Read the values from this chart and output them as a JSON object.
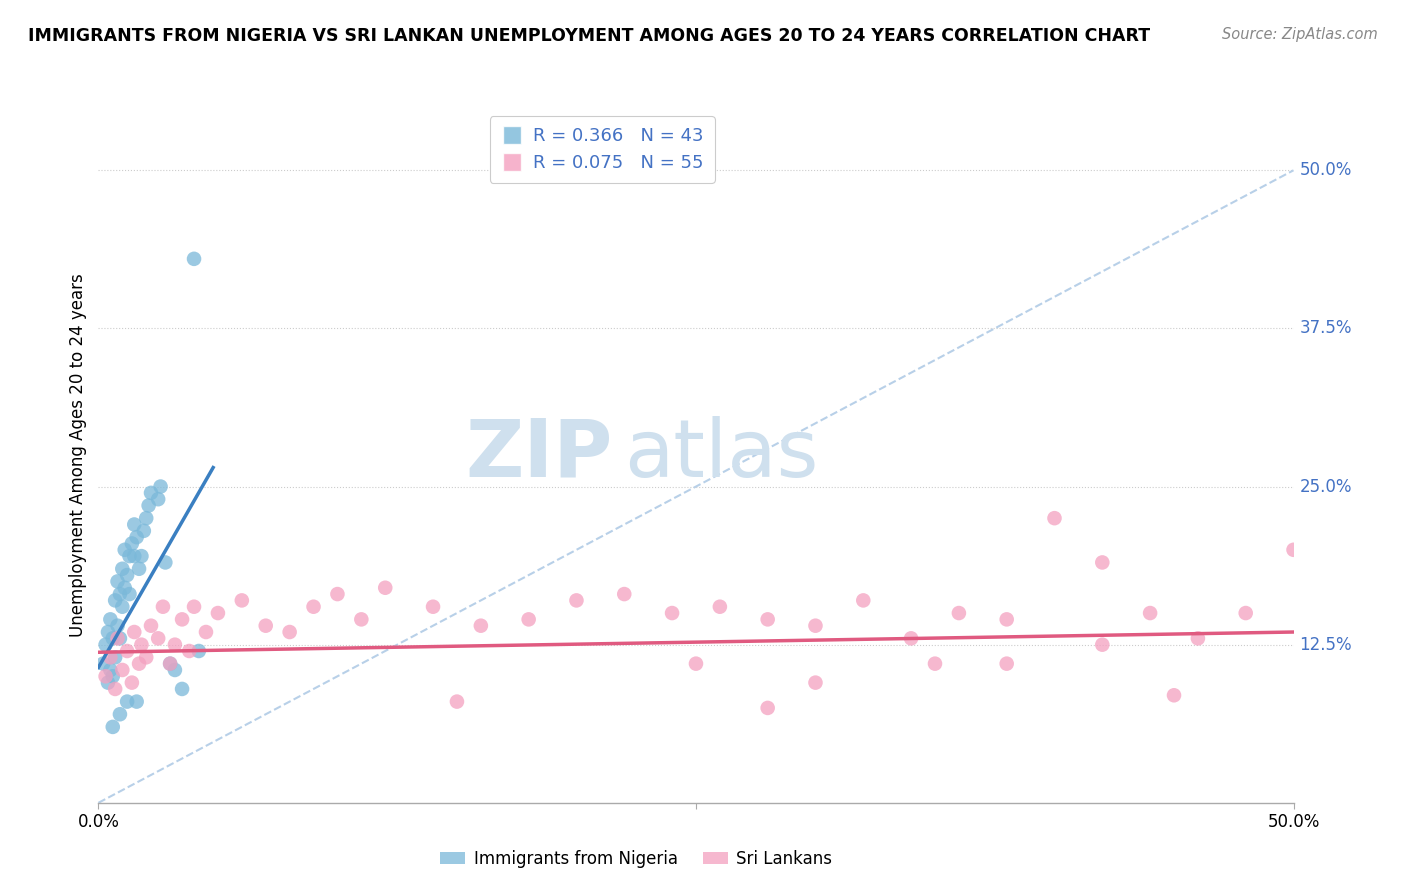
{
  "title": "IMMIGRANTS FROM NIGERIA VS SRI LANKAN UNEMPLOYMENT AMONG AGES 20 TO 24 YEARS CORRELATION CHART",
  "source": "Source: ZipAtlas.com",
  "ylabel": "Unemployment Among Ages 20 to 24 years",
  "xlim": [
    0.0,
    0.5
  ],
  "ylim": [
    0.0,
    0.55
  ],
  "y_tick_labels_right": [
    "50.0%",
    "37.5%",
    "25.0%",
    "12.5%"
  ],
  "y_tick_positions_right": [
    0.5,
    0.375,
    0.25,
    0.125
  ],
  "nigeria_R": 0.366,
  "nigeria_N": 43,
  "srilanka_R": 0.075,
  "srilanka_N": 55,
  "nigeria_color": "#7ab8d9",
  "srilanka_color": "#f4a0c0",
  "nigeria_line_color": "#3a7fc1",
  "srilanka_line_color": "#e05a80",
  "diagonal_line_color": "#b8d0e8",
  "watermark_zip": "ZIP",
  "watermark_atlas": "atlas",
  "watermark_color": "#cfe0ee",
  "legend_label_nigeria": "Immigrants from Nigeria",
  "legend_label_srilanka": "Sri Lankans",
  "nigeria_scatter_x": [
    0.002,
    0.003,
    0.004,
    0.004,
    0.005,
    0.005,
    0.006,
    0.006,
    0.007,
    0.007,
    0.008,
    0.008,
    0.009,
    0.009,
    0.01,
    0.01,
    0.011,
    0.011,
    0.012,
    0.013,
    0.013,
    0.014,
    0.015,
    0.015,
    0.016,
    0.017,
    0.018,
    0.019,
    0.02,
    0.021,
    0.022,
    0.025,
    0.026,
    0.028,
    0.03,
    0.032,
    0.035,
    0.04,
    0.042,
    0.016,
    0.012,
    0.009,
    0.006
  ],
  "nigeria_scatter_y": [
    0.11,
    0.125,
    0.095,
    0.135,
    0.105,
    0.145,
    0.1,
    0.13,
    0.115,
    0.16,
    0.14,
    0.175,
    0.13,
    0.165,
    0.155,
    0.185,
    0.17,
    0.2,
    0.18,
    0.195,
    0.165,
    0.205,
    0.195,
    0.22,
    0.21,
    0.185,
    0.195,
    0.215,
    0.225,
    0.235,
    0.245,
    0.24,
    0.25,
    0.19,
    0.11,
    0.105,
    0.09,
    0.43,
    0.12,
    0.08,
    0.08,
    0.07,
    0.06
  ],
  "srilanka_scatter_x": [
    0.003,
    0.005,
    0.007,
    0.008,
    0.01,
    0.012,
    0.014,
    0.015,
    0.017,
    0.018,
    0.02,
    0.022,
    0.025,
    0.027,
    0.03,
    0.032,
    0.035,
    0.038,
    0.04,
    0.045,
    0.05,
    0.06,
    0.07,
    0.08,
    0.09,
    0.1,
    0.11,
    0.12,
    0.14,
    0.16,
    0.18,
    0.2,
    0.22,
    0.24,
    0.26,
    0.28,
    0.3,
    0.32,
    0.34,
    0.36,
    0.38,
    0.4,
    0.42,
    0.44,
    0.46,
    0.48,
    0.5,
    0.25,
    0.15,
    0.3,
    0.35,
    0.42,
    0.45,
    0.38,
    0.28
  ],
  "srilanka_scatter_y": [
    0.1,
    0.115,
    0.09,
    0.13,
    0.105,
    0.12,
    0.095,
    0.135,
    0.11,
    0.125,
    0.115,
    0.14,
    0.13,
    0.155,
    0.11,
    0.125,
    0.145,
    0.12,
    0.155,
    0.135,
    0.15,
    0.16,
    0.14,
    0.135,
    0.155,
    0.165,
    0.145,
    0.17,
    0.155,
    0.14,
    0.145,
    0.16,
    0.165,
    0.15,
    0.155,
    0.145,
    0.14,
    0.16,
    0.13,
    0.15,
    0.145,
    0.225,
    0.125,
    0.15,
    0.13,
    0.15,
    0.2,
    0.11,
    0.08,
    0.095,
    0.11,
    0.19,
    0.085,
    0.11,
    0.075
  ],
  "nigeria_line_x": [
    0.0,
    0.048
  ],
  "nigeria_line_y": [
    0.107,
    0.265
  ],
  "srilanka_line_x": [
    0.0,
    0.5
  ],
  "srilanka_line_y": [
    0.119,
    0.135
  ]
}
